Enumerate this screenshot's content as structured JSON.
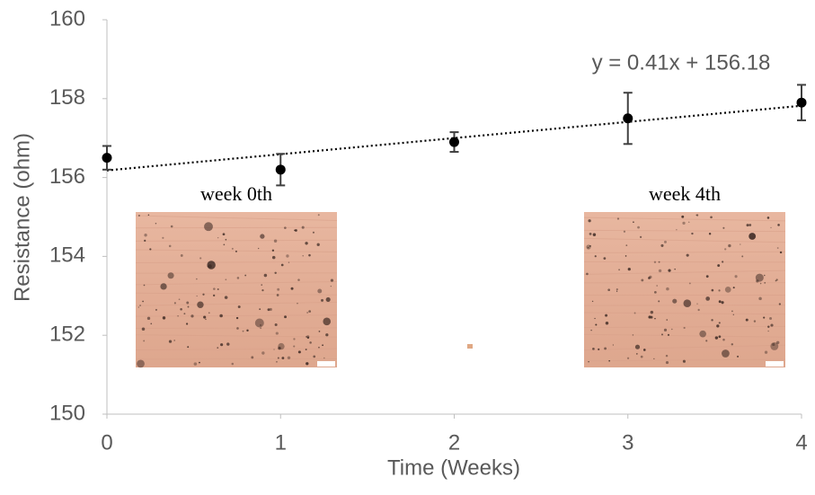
{
  "chart_data": {
    "type": "scatter",
    "x_label": "Time (Weeks)",
    "y_label": "Resistance (ohm)",
    "x": [
      0,
      1,
      2,
      3,
      4
    ],
    "values": [
      156.5,
      156.2,
      156.9,
      157.5,
      157.9
    ],
    "errors": [
      0.3,
      0.4,
      0.25,
      0.65,
      0.45
    ],
    "color": "#000000",
    "xlim": [
      0,
      4
    ],
    "xticks": [
      0,
      1,
      2,
      3,
      4
    ],
    "ylim": [
      150,
      160
    ],
    "yticks": [
      150,
      152,
      154,
      156,
      158,
      160
    ],
    "grid": false,
    "trendline": {
      "slope": 0.41,
      "intercept": 156.18,
      "label": "y = 0.41x + 156.18"
    },
    "insets": [
      {
        "label": "week 0th"
      },
      {
        "label": "week 4th"
      }
    ]
  }
}
